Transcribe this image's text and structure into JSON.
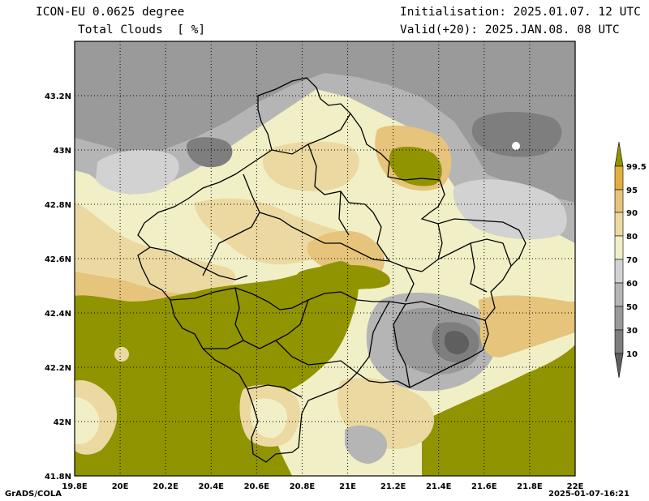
{
  "header": {
    "model": "ICON-EU 0.0625 degree",
    "variable": "Total Clouds  [ %]",
    "init": "Initialisation: 2025.01.07. 12 UTC",
    "valid": "Valid(+20): 2025.JAN.08. 08 UTC"
  },
  "footer": {
    "left": "GrADS/COLA",
    "right": "2025-01-07-16:21"
  },
  "axes": {
    "x_ticks": [
      "19.8E",
      "20E",
      "20.2E",
      "20.4E",
      "20.6E",
      "20.8E",
      "21E",
      "21.2E",
      "21.4E",
      "21.6E",
      "21.8E",
      "22E"
    ],
    "y_ticks": [
      "43.2N",
      "43N",
      "42.8N",
      "42.6N",
      "42.4N",
      "42.2N",
      "42N",
      "41.8N"
    ]
  },
  "colorbar": {
    "labels": [
      "99.5",
      "95",
      "90",
      "80",
      "70",
      "60",
      "50",
      "30",
      "10"
    ],
    "colors": {
      "c10": "#5f5f5f",
      "c30": "#7e7e7e",
      "c50": "#9a9a9a",
      "c60": "#b5b5b5",
      "c70": "#d2d2d2",
      "c80": "#f1efc6",
      "c90": "#ebd9a1",
      "c95": "#e6c47b",
      "c99": "#e3af3c",
      "full": "#909400"
    }
  }
}
